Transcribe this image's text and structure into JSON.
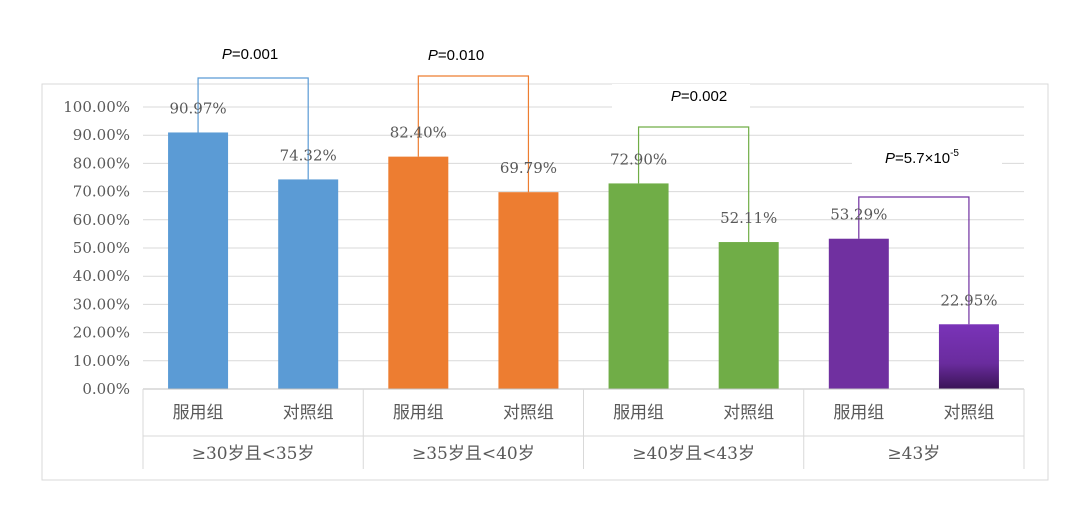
{
  "chart_data": {
    "type": "bar",
    "title": "",
    "xlabel": "",
    "ylabel": "",
    "ylim": [
      0,
      1.0
    ],
    "y_ticks": [
      "0.00%",
      "10.00%",
      "20.00%",
      "30.00%",
      "40.00%",
      "50.00%",
      "60.00%",
      "70.00%",
      "80.00%",
      "90.00%",
      "100.00%"
    ],
    "grid": true,
    "legend": "none",
    "groups": [
      {
        "label": "≥30岁且<35岁",
        "color": "#5b9bd5",
        "bars": [
          {
            "category": "服用组",
            "value": 0.9097,
            "label": "90.97%"
          },
          {
            "category": "对照组",
            "value": 0.7432,
            "label": "74.32%"
          }
        ],
        "p_text": {
          "italic": "P",
          "rest": "=0.001",
          "sup": ""
        }
      },
      {
        "label": "≥35岁且<40岁",
        "color": "#ed7d31",
        "bars": [
          {
            "category": "服用组",
            "value": 0.824,
            "label": "82.40%"
          },
          {
            "category": "对照组",
            "value": 0.6979,
            "label": "69.79%"
          }
        ],
        "p_text": {
          "italic": "P",
          "rest": "=0.010",
          "sup": ""
        }
      },
      {
        "label": "≥40岁且<43岁",
        "color": "#70ad47",
        "bars": [
          {
            "category": "服用组",
            "value": 0.729,
            "label": "72.90%"
          },
          {
            "category": "对照组",
            "value": 0.5211,
            "label": "52.11%"
          }
        ],
        "p_text": {
          "italic": "P",
          "rest": "=0.002",
          "sup": ""
        }
      },
      {
        "label": "≥43岁",
        "color": "#7030a0",
        "bars": [
          {
            "category": "服用组",
            "value": 0.5329,
            "label": "53.29%"
          },
          {
            "category": "对照组",
            "value": 0.2295,
            "label": "22.95%"
          }
        ],
        "p_text": {
          "italic": "P",
          "rest": "=5.7×10",
          "sup": "-5"
        }
      }
    ]
  }
}
